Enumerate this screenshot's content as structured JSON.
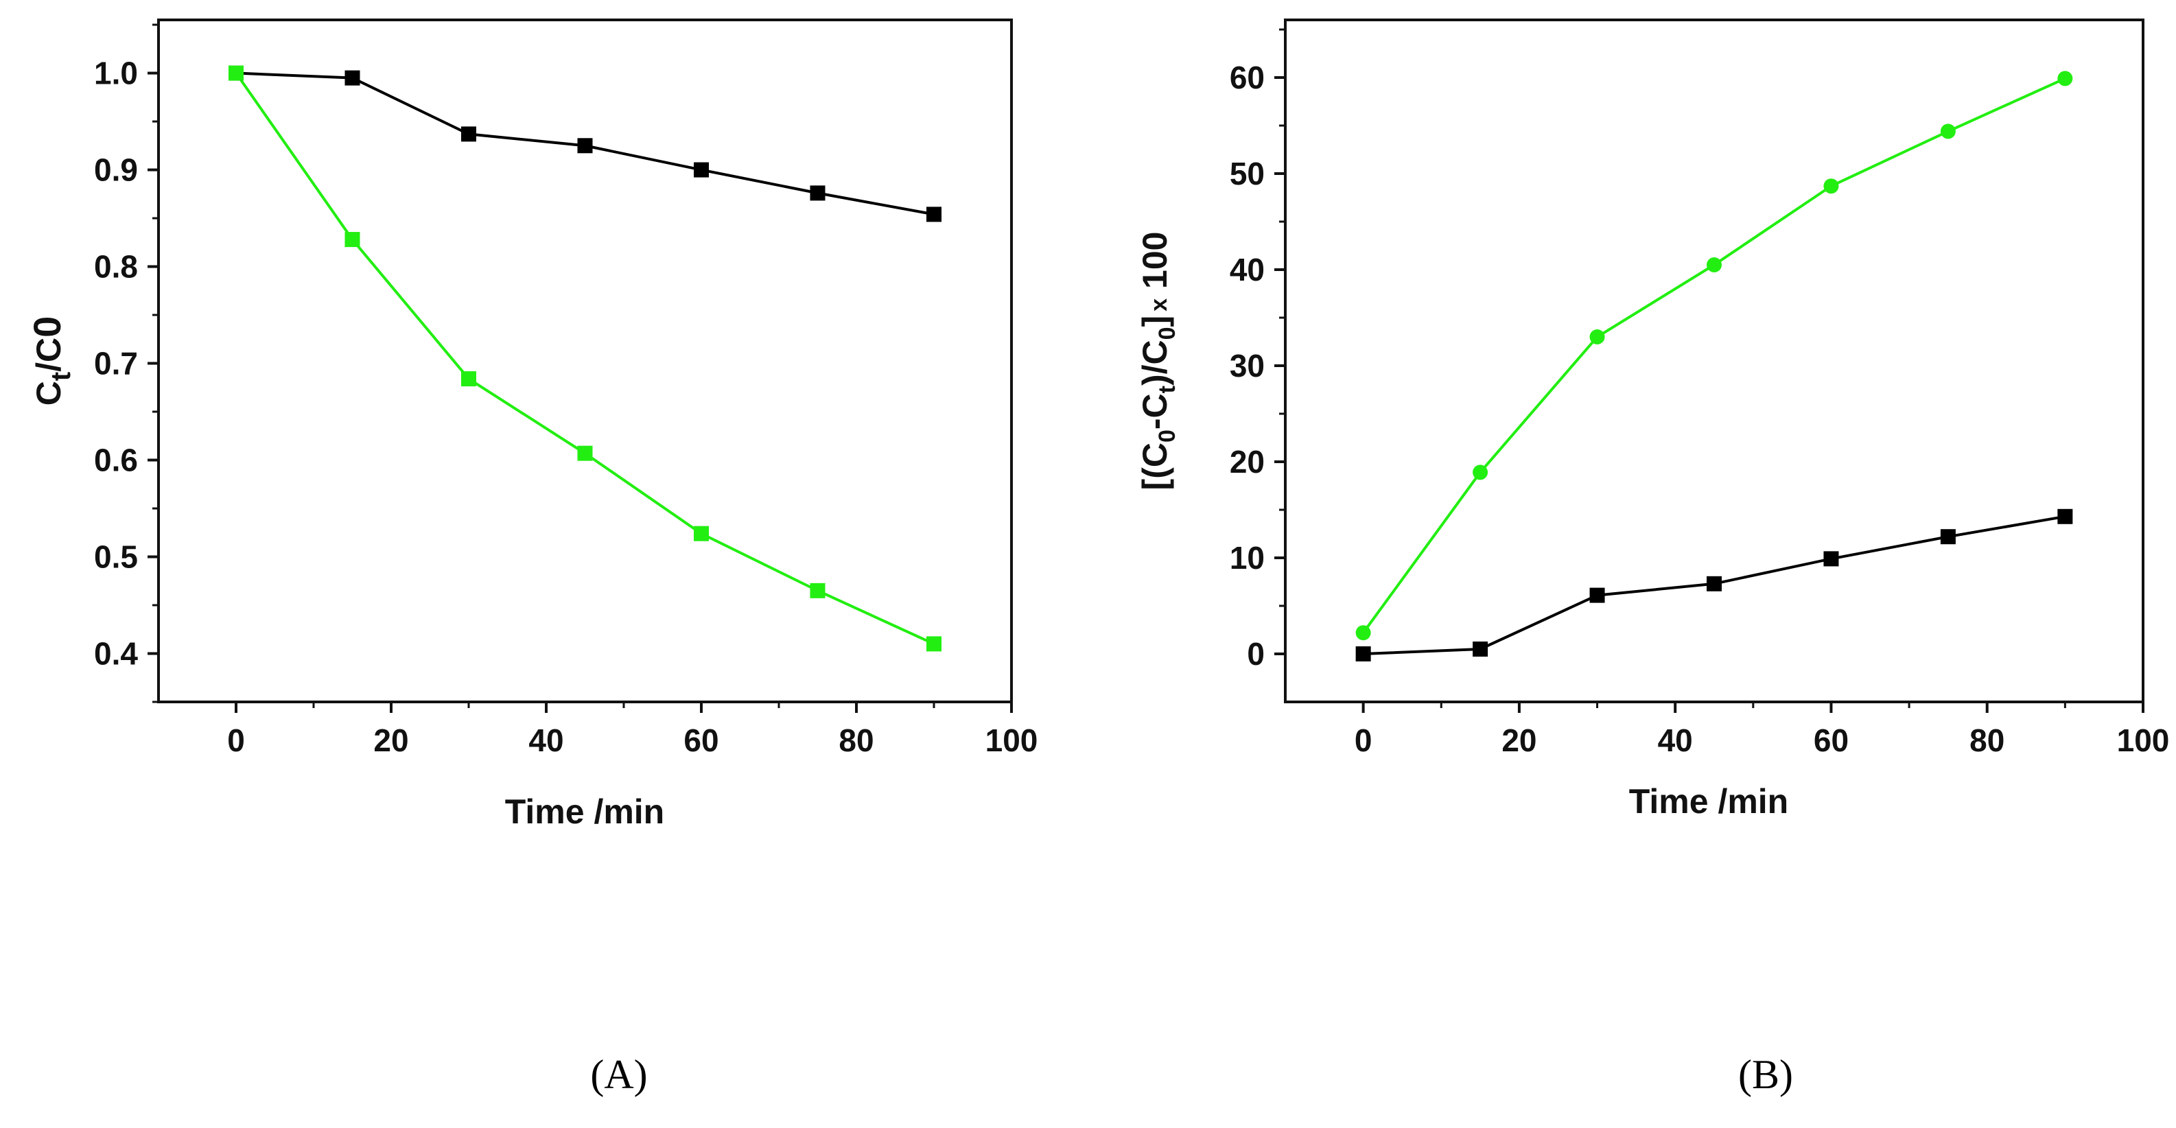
{
  "chart_data": [
    {
      "panel": "A",
      "panel_label": "(A)",
      "type": "line",
      "xlabel": "Time /min",
      "ylabel": {
        "main": "C",
        "sub": "t",
        "slash": "/C",
        "sub2": "0"
      },
      "xlim": [
        -10,
        100
      ],
      "ylim": [
        0.35,
        1.055
      ],
      "xticks": [
        0,
        20,
        40,
        60,
        80,
        100
      ],
      "yticks": [
        0.4,
        0.5,
        0.6,
        0.7,
        0.8,
        0.9,
        1.0
      ],
      "ytick_labels": [
        "0.4",
        "0.5",
        "0.6",
        "0.7",
        "0.8",
        "0.9",
        "1.0"
      ],
      "x": [
        0,
        15,
        30,
        45,
        60,
        75,
        90
      ],
      "series": [
        {
          "name": "black",
          "color": "#000000",
          "marker": "square",
          "values": [
            1.0,
            0.995,
            0.937,
            0.925,
            0.9,
            0.876,
            0.854
          ]
        },
        {
          "name": "green",
          "color": "#22ee11",
          "marker": "square",
          "values": [
            1.0,
            0.828,
            0.684,
            0.607,
            0.524,
            0.465,
            0.41
          ]
        }
      ]
    },
    {
      "panel": "B",
      "panel_label": "(B)",
      "type": "line",
      "xlabel": "Time /min",
      "ylabel": {
        "p1": "[(C",
        "s1": "0",
        "p2": "-C",
        "s2": "t",
        "p3": ")/C",
        "s3": "0",
        "p4": "]",
        "p5": "x",
        "p6": " 100"
      },
      "xlim": [
        -10,
        100
      ],
      "ylim": [
        -5,
        66
      ],
      "xticks": [
        0,
        20,
        40,
        60,
        80,
        100
      ],
      "yticks": [
        0,
        10,
        20,
        30,
        40,
        50,
        60
      ],
      "ytick_labels": [
        "0",
        "10",
        "20",
        "30",
        "40",
        "50",
        "60"
      ],
      "x": [
        0,
        15,
        30,
        45,
        60,
        75,
        90
      ],
      "series": [
        {
          "name": "black",
          "color": "#000000",
          "marker": "square",
          "values": [
            0,
            0.5,
            6.1,
            7.3,
            9.9,
            12.2,
            14.3
          ]
        },
        {
          "name": "green",
          "color": "#22ee11",
          "marker": "circle",
          "values": [
            2.2,
            18.9,
            33.0,
            40.5,
            48.7,
            54.4,
            59.9
          ]
        }
      ]
    }
  ]
}
